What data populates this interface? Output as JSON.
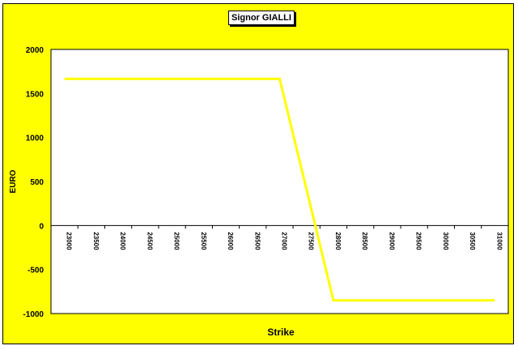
{
  "chart_data": {
    "type": "line",
    "title": "Signor GIALLI",
    "xlabel": "Strike",
    "ylabel": "EURO",
    "categories": [
      "23000",
      "23500",
      "24000",
      "24500",
      "25000",
      "25500",
      "26000",
      "26500",
      "27000",
      "27500",
      "28000",
      "28500",
      "29000",
      "29500",
      "30000",
      "30500",
      "31000"
    ],
    "series": [
      {
        "values": [
          1665,
          1665,
          1665,
          1665,
          1665,
          1665,
          1665,
          1665,
          1665,
          410,
          -850,
          -850,
          -850,
          -850,
          -850,
          -850,
          -850
        ]
      }
    ],
    "ylim": [
      -1000,
      2000
    ],
    "yticks": [
      2000,
      1500,
      1000,
      500,
      0,
      -500,
      -1000
    ],
    "grid": false,
    "legend": "none",
    "colors": {
      "line": "#ffff00",
      "background": "#ffff00",
      "plot_area": "#ffffff"
    }
  }
}
